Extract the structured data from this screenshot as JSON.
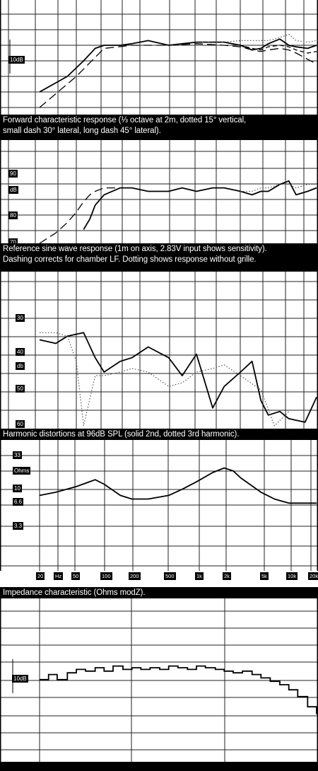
{
  "chart_data": [
    {
      "type": "line",
      "caption": "Forward characteristic response (⅓ octave at 2m, dotted 15° vertical, small dash 30° lateral, long dash 45° lateral).",
      "ylabel": "10dB",
      "series": [
        {
          "name": "on axis",
          "style": "solid",
          "x": [
            20,
            40,
            60,
            80,
            100,
            150,
            200,
            300,
            500,
            700,
            1000,
            1500,
            2000,
            3000,
            4000,
            5000,
            6000,
            8000,
            10000,
            12000,
            16000,
            20000
          ],
          "values": [
            -30,
            -20,
            -10,
            -2,
            0,
            0,
            1,
            3,
            0,
            1,
            2,
            2,
            2,
            0,
            -3,
            -2,
            1,
            4,
            0,
            -1,
            -2,
            0
          ]
        },
        {
          "name": "15 vertical",
          "style": "dotted",
          "x": [
            1000,
            2000,
            3000,
            4000,
            5000,
            6000,
            8000,
            10000,
            12000,
            16000,
            20000
          ],
          "values": [
            2,
            2,
            3,
            3,
            3,
            3,
            5,
            7,
            3,
            2,
            3
          ]
        },
        {
          "name": "30 lateral",
          "style": "small dash",
          "x": [
            1000,
            2000,
            3000,
            4000,
            5000,
            6000,
            8000,
            10000,
            12000,
            16000,
            20000
          ],
          "values": [
            2,
            2,
            0,
            -2,
            -3,
            -1,
            0,
            -1,
            -3,
            -5,
            -4
          ]
        },
        {
          "name": "45 lateral",
          "style": "long dash",
          "x": [
            20,
            50,
            100,
            200,
            500,
            1000,
            2000,
            3000,
            4000,
            5000,
            6000,
            8000,
            10000,
            12000,
            16000,
            20000
          ],
          "values": [
            -40,
            -20,
            -2,
            0,
            0,
            1,
            0,
            -1,
            -3,
            -4,
            -3,
            -2,
            -3,
            -5,
            -9,
            -12
          ]
        }
      ]
    },
    {
      "type": "line",
      "caption": "Reference sine wave response (1m on axis, 2.83V input shows sensitivity). Dashing corrects for chamber LF. Dotting shows response without grille.",
      "yticks": [
        "90",
        "dB",
        "80",
        "70"
      ],
      "ylim": [
        70,
        90
      ],
      "series": [
        {
          "name": "on axis",
          "style": "solid",
          "x": [
            60,
            70,
            80,
            100,
            150,
            200,
            300,
            500,
            700,
            1000,
            1500,
            2000,
            3000,
            4000,
            5000,
            6000,
            8000,
            10000,
            12000,
            16000,
            20000
          ],
          "values": [
            74,
            77,
            81,
            84,
            86,
            86,
            85,
            85,
            86,
            85,
            86,
            86,
            85,
            84,
            85,
            85,
            87,
            88,
            84,
            85,
            86
          ]
        },
        {
          "name": "chamber LF correction",
          "style": "dashed",
          "x": [
            20,
            30,
            40,
            50,
            60,
            70,
            80,
            100,
            150
          ],
          "values": [
            70,
            73,
            76,
            79,
            82,
            84,
            85,
            86,
            86
          ]
        },
        {
          "name": "without grille",
          "style": "dotted",
          "x": [
            3000,
            4000,
            5000,
            6000,
            8000,
            10000,
            12000,
            16000,
            20000
          ],
          "values": [
            85,
            85,
            86,
            86,
            87,
            87,
            86,
            87,
            87
          ]
        }
      ]
    },
    {
      "type": "line",
      "caption": "Harmonic distortions at 96dB SPL (solid 2nd, dotted 3rd harmonic).",
      "yticks": [
        "30",
        "40",
        "db",
        "50",
        "60"
      ],
      "ylim": [
        30,
        60
      ],
      "series": [
        {
          "name": "2nd harmonic",
          "style": "solid",
          "x": [
            20,
            30,
            40,
            60,
            80,
            100,
            150,
            200,
            300,
            500,
            700,
            1000,
            1500,
            2000,
            3000,
            4000,
            5000,
            6000,
            8000,
            10000,
            15000,
            20000
          ],
          "values": [
            36,
            37,
            35,
            34,
            41,
            45,
            42,
            41,
            38,
            41,
            46,
            40,
            55,
            49,
            45,
            42,
            53,
            57,
            56,
            58,
            59,
            52
          ]
        },
        {
          "name": "3rd harmonic",
          "style": "dotted",
          "x": [
            20,
            30,
            40,
            50,
            60,
            80,
            100,
            150,
            200,
            300,
            500,
            700,
            1000,
            1500,
            2000,
            3000,
            5000,
            7000,
            10000
          ],
          "values": [
            34,
            34,
            35,
            42,
            60,
            46,
            46,
            45,
            44,
            45,
            49,
            48,
            45,
            44,
            43,
            46,
            50,
            60,
            56
          ]
        }
      ]
    },
    {
      "type": "line",
      "caption": "Impedance characteristic (Ohms modZ).",
      "yticks": [
        "33",
        "Ohms",
        "10",
        "6.6",
        "3.3"
      ],
      "xticks": [
        "20",
        "Hz",
        "50",
        "100",
        "200",
        "500",
        "1k",
        "2k",
        "5k",
        "10k",
        "20k"
      ],
      "series": [
        {
          "name": "impedance",
          "style": "solid",
          "x": [
            20,
            30,
            50,
            80,
            100,
            150,
            200,
            300,
            500,
            700,
            1000,
            1500,
            2000,
            2500,
            3000,
            5000,
            7000,
            10000,
            15000,
            20000
          ],
          "values": [
            9,
            10,
            12,
            15,
            13,
            9,
            8,
            8,
            9,
            11,
            14,
            19,
            22,
            20,
            16,
            10,
            8,
            7,
            7,
            7
          ]
        }
      ]
    },
    {
      "type": "line",
      "caption": "",
      "ylabel": "10dB",
      "series": [
        {
          "name": "third octave",
          "style": "solid",
          "x": [
            20,
            25,
            31,
            40,
            50,
            63,
            80,
            100,
            125,
            160,
            200,
            250,
            315,
            400,
            500,
            630,
            800,
            1000,
            1250,
            1600,
            2000,
            2500,
            3150,
            4000,
            5000,
            6300,
            8000,
            10000,
            12500,
            16000,
            20000
          ],
          "values": [
            -2,
            1,
            -2,
            2,
            4,
            3,
            5,
            3,
            6,
            4,
            5,
            4,
            5,
            4,
            6,
            5,
            4,
            6,
            5,
            4,
            3,
            2,
            3,
            1,
            -1,
            -3,
            -5,
            -8,
            -12,
            -18,
            -22
          ]
        }
      ]
    }
  ],
  "tick_labels": {
    "p1_ylabel": "10dB",
    "p2_yticks": [
      "90",
      "dB",
      "80",
      "70"
    ],
    "p3_yticks": [
      "30",
      "40",
      "db",
      "50",
      "60"
    ],
    "p4_yticks": [
      "33",
      "Ohms",
      "10",
      "6.6",
      "3.3"
    ],
    "p4_xticks": [
      "20",
      "Hz",
      "50",
      "100",
      "200",
      "500",
      "1k",
      "2k",
      "5k",
      "10k",
      "20k"
    ],
    "p5_ylabel": "10dB"
  },
  "captions": {
    "p1": "Forward characteristic response (⅓ octave at 2m, dotted 15° vertical,\nsmall dash 30° lateral, long dash 45° lateral).",
    "p2": "Reference sine wave response (1m on axis, 2.83V input shows sensitivity).\nDashing corrects for chamber LF. Dotting shows response without grille.",
    "p3": "Harmonic distortions at 96dB SPL (solid 2nd, dotted 3rd harmonic).",
    "p4": "Impedance characteristic (Ohms modZ)."
  }
}
